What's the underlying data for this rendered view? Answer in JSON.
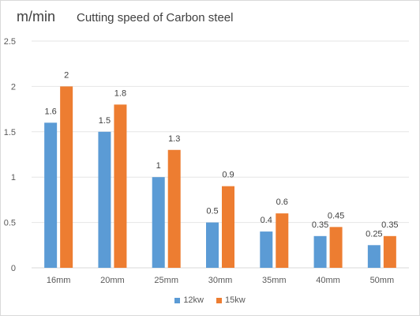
{
  "chart_data": {
    "type": "bar",
    "title": "Cutting speed of Carbon steel",
    "ylabel": "m/min",
    "xlabel": "",
    "categories": [
      "16mm",
      "20mm",
      "25mm",
      "30mm",
      "35mm",
      "40mm",
      "50mm"
    ],
    "series": [
      {
        "name": "12kw",
        "color": "#5b9bd5",
        "values": [
          1.6,
          1.5,
          1,
          0.5,
          0.4,
          0.35,
          0.25
        ]
      },
      {
        "name": "15kw",
        "color": "#ed7d31",
        "values": [
          2,
          1.8,
          1.3,
          0.9,
          0.6,
          0.45,
          0.35
        ]
      }
    ],
    "ylim": [
      0,
      2.5
    ],
    "yticks": [
      "0",
      "0.5",
      "1",
      "1.5",
      "2",
      "2.5"
    ],
    "grid": true,
    "legend_position": "bottom"
  }
}
